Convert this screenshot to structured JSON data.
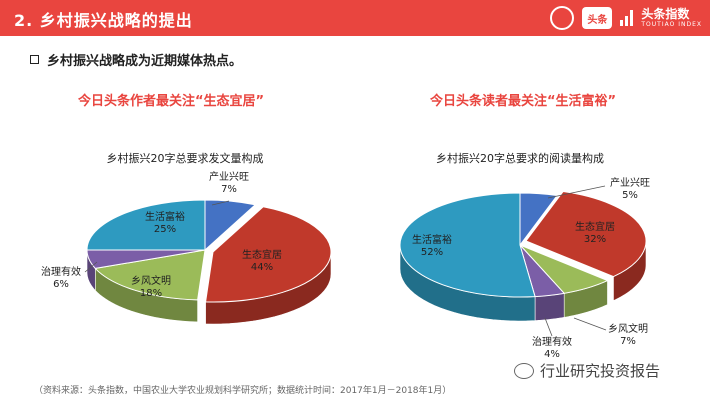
{
  "header": {
    "title": "2. 乡村振兴战略的提出",
    "brand_name": "头条指数",
    "brand_sub": "TOUTIAO INDEX",
    "mark_label": "头条"
  },
  "subtitle": "乡村振兴战略成为近期媒体热点。",
  "captions": {
    "left": "今日头条作者最关注“生态宜居”",
    "right": "今日头条读者最关注“生活富裕”"
  },
  "footer": "（资料来源：头条指数，中国农业大学农业规划科学研究所；数据统计时间：2017年1月－2018年1月）",
  "watermark": "行业研究投资报告",
  "colors": {
    "header": "#e9453f",
    "chanye": "#4472c4",
    "shengtai": "#c0392b",
    "xiangfeng": "#9bbb59",
    "zhili": "#7b5ea7",
    "shenghuo": "#2e9ac0"
  },
  "chart_data": [
    {
      "type": "pie",
      "title": "乡村振兴20字总要求发文量构成",
      "slices": [
        {
          "label": "产业兴旺",
          "value": 7,
          "text": "7%",
          "color": "#4472c4"
        },
        {
          "label": "生态宜居",
          "value": 44,
          "text": "44%",
          "color": "#c0392b"
        },
        {
          "label": "乡风文明",
          "value": 18,
          "text": "18%",
          "color": "#9bbb59"
        },
        {
          "label": "治理有效",
          "value": 6,
          "text": "6%",
          "color": "#7b5ea7"
        },
        {
          "label": "生活富裕",
          "value": 25,
          "text": "25%",
          "color": "#2e9ac0"
        }
      ]
    },
    {
      "type": "pie",
      "title": "乡村振兴20字总要求的阅读量构成",
      "slices": [
        {
          "label": "产业兴旺",
          "value": 5,
          "text": "5%",
          "color": "#4472c4"
        },
        {
          "label": "生态宜居",
          "value": 32,
          "text": "32%",
          "color": "#c0392b"
        },
        {
          "label": "乡风文明",
          "value": 7,
          "text": "7%",
          "color": "#9bbb59"
        },
        {
          "label": "治理有效",
          "value": 4,
          "text": "4%",
          "color": "#7b5ea7"
        },
        {
          "label": "生活富裕",
          "value": 52,
          "text": "52%",
          "color": "#2e9ac0"
        }
      ]
    }
  ]
}
